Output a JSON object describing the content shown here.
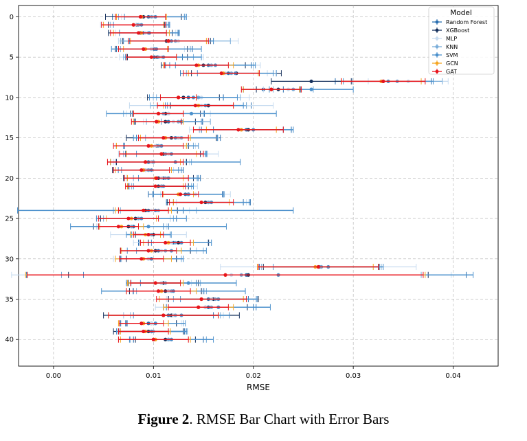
{
  "figure": {
    "caption_label": "Figure 2",
    "caption_text": ". RMSE Bar Chart with Error Bars"
  },
  "chart_data": {
    "type": "scatter",
    "xlabel": "RMSE",
    "ylabel": "",
    "xlim": [
      -0.0035,
      0.0445
    ],
    "ylim": [
      43.3,
      -1.4
    ],
    "x_ticks": [
      "0.00",
      "0.01",
      "0.02",
      "0.03",
      "0.04"
    ],
    "y_ticks": [
      "0",
      "5",
      "10",
      "15",
      "20",
      "25",
      "30",
      "35",
      "40"
    ],
    "grid": true,
    "legend": {
      "title": "Model",
      "position": "top-right"
    },
    "series": [
      {
        "name": "Random Forest",
        "color": "#2a6fb0",
        "values": [
          [
            0.0095,
            0.0036
          ],
          [
            0.0085,
            0.003
          ],
          [
            0.009,
            0.0035
          ],
          [
            0.0115,
            0.0045
          ],
          [
            0.0101,
            0.0038
          ],
          [
            0.0101,
            0.0028
          ],
          [
            0.0155,
            0.0043
          ],
          [
            0.0175,
            0.0048
          ],
          [
            0.033,
            0.0048
          ],
          [
            0.021,
            0.002
          ],
          [
            0.0135,
            0.0035
          ],
          [
            0.0155,
            0.0043
          ],
          [
            0.0115,
            0.0036
          ],
          [
            0.0115,
            0.0034
          ],
          [
            0.0193,
            0.0045
          ],
          [
            0.0125,
            0.0042
          ],
          [
            0.0105,
            0.0035
          ],
          [
            0.0112,
            0.004
          ],
          [
            0.0095,
            0.0038
          ],
          [
            0.0095,
            0.0035
          ],
          [
            0.011,
            0.0037
          ],
          [
            0.0108,
            0.0032
          ],
          [
            0.0132,
            0.0037
          ],
          [
            0.0155,
            0.0042
          ],
          [
            0.0095,
            0.0035
          ],
          [
            0.0085,
            0.0038
          ],
          [
            0.008,
            0.0035
          ],
          [
            0.0098,
            0.002
          ],
          [
            0.012,
            0.0035
          ],
          [
            0.0105,
            0.0038
          ],
          [
            0.0095,
            0.0028
          ],
          [
            0.0266,
            0.006
          ],
          [
            0.0193,
            0.022
          ],
          [
            0.0108,
            0.0035
          ],
          [
            0.0115,
            0.0035
          ],
          [
            0.0155,
            0.004
          ],
          [
            0.0155,
            0.0045
          ],
          [
            0.0115,
            0.0045
          ],
          [
            0.0095,
            0.0028
          ],
          [
            0.0098,
            0.0033
          ],
          [
            0.0115,
            0.0035
          ]
        ]
      },
      {
        "name": "XGBoost",
        "color": "#15305c",
        "values": [
          [
            0.009,
            0.0038
          ],
          [
            0.0083,
            0.0028
          ],
          [
            0.0087,
            0.0032
          ],
          [
            0.0113,
            0.0044
          ],
          [
            0.0098,
            0.0036
          ],
          [
            0.0104,
            0.003
          ],
          [
            0.015,
            0.0042
          ],
          [
            0.0183,
            0.0045
          ],
          [
            0.0258,
            0.004
          ],
          [
            0.0225,
            0.0022
          ],
          [
            0.013,
            0.0036
          ],
          [
            0.0155,
            0.0038
          ],
          [
            0.0112,
            0.0035
          ],
          [
            0.0112,
            0.003
          ],
          [
            0.0195,
            0.0035
          ],
          [
            0.0118,
            0.0045
          ],
          [
            0.0103,
            0.0032
          ],
          [
            0.011,
            0.0037
          ],
          [
            0.0098,
            0.0035
          ],
          [
            0.0092,
            0.0033
          ],
          [
            0.0105,
            0.0035
          ],
          [
            0.0105,
            0.003
          ],
          [
            0.0135,
            0.0035
          ],
          [
            0.0152,
            0.0038
          ],
          [
            0.0092,
            0.0032
          ],
          [
            0.0082,
            0.0035
          ],
          [
            0.0075,
            0.0035
          ],
          [
            0.01,
            0.0018
          ],
          [
            0.0125,
            0.003
          ],
          [
            0.0102,
            0.0035
          ],
          [
            0.0098,
            0.0025
          ],
          [
            0.0268,
            0.0058
          ],
          [
            0.0195,
            0.018
          ],
          [
            0.011,
            0.0035
          ],
          [
            0.0112,
            0.0036
          ],
          [
            0.016,
            0.0045
          ],
          [
            0.0152,
            0.0042
          ],
          [
            0.0118,
            0.0068
          ],
          [
            0.0098,
            0.0025
          ],
          [
            0.0095,
            0.0035
          ],
          [
            0.0112,
            0.003
          ]
        ]
      },
      {
        "name": "MLP",
        "color": "#c8dcf0",
        "values": [
          [
            0.01,
            0.0032
          ],
          [
            0.0082,
            0.0035
          ],
          [
            0.0092,
            0.003
          ],
          [
            0.0125,
            0.006
          ],
          [
            0.0098,
            0.0033
          ],
          [
            0.0108,
            0.0042
          ],
          [
            0.0162,
            0.0045
          ],
          [
            0.0172,
            0.0042
          ],
          [
            0.0355,
            0.004
          ],
          [
            0.0235,
            0.0025
          ],
          [
            0.0148,
            0.0048
          ],
          [
            0.0148,
            0.0072
          ],
          [
            0.0115,
            0.0042
          ],
          [
            0.012,
            0.003
          ],
          [
            0.0188,
            0.0052
          ],
          [
            0.0125,
            0.004
          ],
          [
            0.0102,
            0.004
          ],
          [
            0.0115,
            0.005
          ],
          [
            0.0098,
            0.0038
          ],
          [
            0.0092,
            0.0028
          ],
          [
            0.0108,
            0.0035
          ],
          [
            0.011,
            0.0034
          ],
          [
            0.0142,
            0.0035
          ],
          [
            0.0158,
            0.0035
          ],
          [
            0.0098,
            0.0038
          ],
          [
            0.0085,
            0.0032
          ],
          [
            0.0078,
            0.0035
          ],
          [
            0.0095,
            0.0038
          ],
          [
            0.0118,
            0.0038
          ],
          [
            0.0108,
            0.0035
          ],
          [
            0.0095,
            0.0035
          ],
          [
            0.0265,
            0.0098
          ],
          [
            0.0178,
            0.022
          ],
          [
            0.0108,
            0.003
          ],
          [
            0.0115,
            0.0036
          ],
          [
            0.0158,
            0.0045
          ],
          [
            0.0152,
            0.005
          ],
          [
            0.012,
            0.005
          ],
          [
            0.0098,
            0.003
          ],
          [
            0.0098,
            0.0034
          ],
          [
            0.0115,
            0.0038
          ]
        ]
      },
      {
        "name": "KNN",
        "color": "#79add9",
        "values": [
          [
            0.0098,
            0.0033
          ],
          [
            0.0085,
            0.0028
          ],
          [
            0.0095,
            0.0029
          ],
          [
            0.0122,
            0.0055
          ],
          [
            0.0102,
            0.0035
          ],
          [
            0.0105,
            0.0035
          ],
          [
            0.0158,
            0.0042
          ],
          [
            0.0178,
            0.0045
          ],
          [
            0.0344,
            0.0045
          ],
          [
            0.024,
            0.002
          ],
          [
            0.0145,
            0.0042
          ],
          [
            0.0145,
            0.0048
          ],
          [
            0.011,
            0.004
          ],
          [
            0.0125,
            0.0032
          ],
          [
            0.0188,
            0.0042
          ],
          [
            0.0128,
            0.0036
          ],
          [
            0.0105,
            0.0035
          ],
          [
            0.0112,
            0.0042
          ],
          [
            0.01,
            0.0038
          ],
          [
            0.0095,
            0.003
          ],
          [
            0.0112,
            0.0032
          ],
          [
            0.0108,
            0.003
          ],
          [
            0.0135,
            0.0036
          ],
          [
            0.0155,
            0.0035
          ],
          [
            0.0105,
            0.0038
          ],
          [
            0.0085,
            0.0035
          ],
          [
            0.0078,
            0.0032
          ],
          [
            0.0098,
            0.002
          ],
          [
            0.0122,
            0.0036
          ],
          [
            0.0112,
            0.0038
          ],
          [
            0.0098,
            0.003
          ],
          [
            0.0268,
            0.006
          ],
          [
            0.0188,
            0.018
          ],
          [
            0.0112,
            0.0035
          ],
          [
            0.0118,
            0.0035
          ],
          [
            0.0162,
            0.0042
          ],
          [
            0.0158,
            0.0045
          ],
          [
            0.0122,
            0.0045
          ],
          [
            0.0102,
            0.0028
          ],
          [
            0.01,
            0.0034
          ],
          [
            0.0115,
            0.0038
          ]
        ]
      },
      {
        "name": "SVM",
        "color": "#4b90cc",
        "values": [
          [
            0.0102,
            0.0031
          ],
          [
            0.0088,
            0.0028
          ],
          [
            0.0096,
            0.003
          ],
          [
            0.0118,
            0.0042
          ],
          [
            0.0103,
            0.0045
          ],
          [
            0.011,
            0.0038
          ],
          [
            0.0162,
            0.004
          ],
          [
            0.0182,
            0.0038
          ],
          [
            0.0335,
            0.0045
          ],
          [
            0.0258,
            0.0042
          ],
          [
            0.014,
            0.0044
          ],
          [
            0.0152,
            0.0038
          ],
          [
            0.0138,
            0.0085
          ],
          [
            0.0128,
            0.002
          ],
          [
            0.02,
            0.004
          ],
          [
            0.0122,
            0.0042
          ],
          [
            0.0108,
            0.0037
          ],
          [
            0.0118,
            0.0035
          ],
          [
            0.0122,
            0.0065
          ],
          [
            0.0098,
            0.003
          ],
          [
            0.0115,
            0.003
          ],
          [
            0.011,
            0.003
          ],
          [
            0.0135,
            0.0035
          ],
          [
            0.0158,
            0.0038
          ],
          [
            0.0102,
            0.0138
          ],
          [
            0.0088,
            0.0045
          ],
          [
            0.0095,
            0.0078
          ],
          [
            0.0095,
            0.0022
          ],
          [
            0.0128,
            0.003
          ],
          [
            0.0118,
            0.0035
          ],
          [
            0.0098,
            0.0032
          ],
          [
            0.0275,
            0.0055
          ],
          [
            0.0225,
            0.0195
          ],
          [
            0.0135,
            0.0048
          ],
          [
            0.012,
            0.0072
          ],
          [
            0.0165,
            0.0038
          ],
          [
            0.0165,
            0.0052
          ],
          [
            0.0128,
            0.0048
          ],
          [
            0.0102,
            0.003
          ],
          [
            0.0098,
            0.0035
          ],
          [
            0.0118,
            0.0042
          ]
        ]
      },
      {
        "name": "GCN",
        "color": "#f5a623",
        "values": [
          [
            0.0088,
            0.0025
          ],
          [
            0.008,
            0.003
          ],
          [
            0.0088,
            0.0028
          ],
          [
            0.0115,
            0.0038
          ],
          [
            0.0092,
            0.0022
          ],
          [
            0.0098,
            0.0025
          ],
          [
            0.0145,
            0.0035
          ],
          [
            0.017,
            0.0035
          ],
          [
            0.0328,
            0.004
          ],
          [
            0.0218,
            0.0028
          ],
          [
            0.0125,
            0.0018
          ],
          [
            0.0145,
            0.0035
          ],
          [
            0.0105,
            0.0025
          ],
          [
            0.0105,
            0.0025
          ],
          [
            0.0188,
            0.0035
          ],
          [
            0.0112,
            0.0025
          ],
          [
            0.0098,
            0.0035
          ],
          [
            0.0108,
            0.0035
          ],
          [
            0.0092,
            0.0035
          ],
          [
            0.009,
            0.0028
          ],
          [
            0.0102,
            0.0028
          ],
          [
            0.0102,
            0.0028
          ],
          [
            0.0125,
            0.0015
          ],
          [
            0.0148,
            0.0028
          ],
          [
            0.009,
            0.0028
          ],
          [
            0.0078,
            0.0025
          ],
          [
            0.0068,
            0.0022
          ],
          [
            0.0092,
            0.0015
          ],
          [
            0.0115,
            0.0025
          ],
          [
            0.0098,
            0.003
          ],
          [
            0.009,
            0.0028
          ],
          [
            0.0262,
            0.0058
          ],
          [
            0.0172,
            0.02
          ],
          [
            0.0102,
            0.0028
          ],
          [
            0.0108,
            0.0035
          ],
          [
            0.0148,
            0.0042
          ],
          [
            0.0145,
            0.0035
          ],
          [
            0.011,
            0.0055
          ],
          [
            0.009,
            0.0025
          ],
          [
            0.0092,
            0.0025
          ],
          [
            0.0102,
            0.0035
          ]
        ]
      },
      {
        "name": "GAT",
        "color": "#e8141c",
        "values": [
          [
            0.0087,
            0.0025
          ],
          [
            0.008,
            0.0032
          ],
          [
            0.0085,
            0.0028
          ],
          [
            0.0115,
            0.004
          ],
          [
            0.009,
            0.0025
          ],
          [
            0.0098,
            0.0025
          ],
          [
            0.0143,
            0.0032
          ],
          [
            0.0168,
            0.0038
          ],
          [
            0.033,
            0.0042
          ],
          [
            0.0218,
            0.003
          ],
          [
            0.0125,
            0.0018
          ],
          [
            0.0142,
            0.0038
          ],
          [
            0.0105,
            0.0025
          ],
          [
            0.0103,
            0.0025
          ],
          [
            0.0185,
            0.0045
          ],
          [
            0.011,
            0.0025
          ],
          [
            0.0095,
            0.0035
          ],
          [
            0.0108,
            0.0042
          ],
          [
            0.0092,
            0.0038
          ],
          [
            0.0088,
            0.0028
          ],
          [
            0.0103,
            0.0032
          ],
          [
            0.0102,
            0.003
          ],
          [
            0.0127,
            0.0018
          ],
          [
            0.0148,
            0.0032
          ],
          [
            0.009,
            0.0025
          ],
          [
            0.0075,
            0.003
          ],
          [
            0.0065,
            0.002
          ],
          [
            0.0095,
            0.0015
          ],
          [
            0.0112,
            0.0025
          ],
          [
            0.0095,
            0.0028
          ],
          [
            0.0088,
            0.0022
          ],
          [
            0.0265,
            0.006
          ],
          [
            0.0172,
            0.0198
          ],
          [
            0.0102,
            0.0025
          ],
          [
            0.0105,
            0.0032
          ],
          [
            0.0148,
            0.0045
          ],
          [
            0.0145,
            0.003
          ],
          [
            0.011,
            0.0055
          ],
          [
            0.0088,
            0.0022
          ],
          [
            0.009,
            0.0025
          ],
          [
            0.01,
            0.0035
          ]
        ]
      }
    ]
  }
}
